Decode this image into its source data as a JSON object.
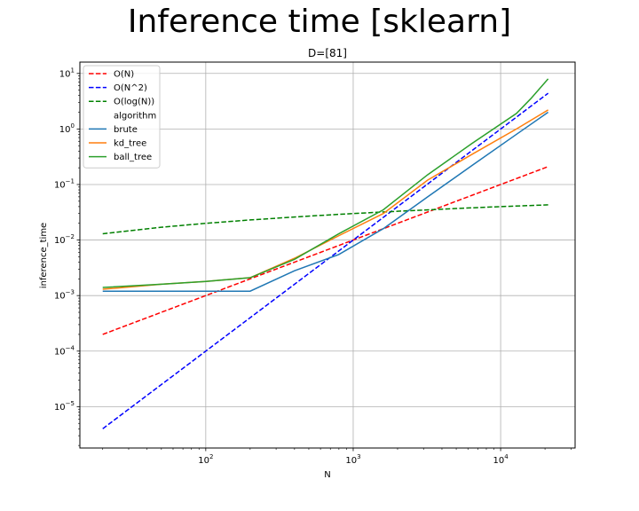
{
  "figure": {
    "suptitle": "Inference time [sklearn]"
  },
  "chart_data": {
    "type": "line",
    "title": "D=[81]",
    "xlabel": "N",
    "ylabel": "inference_time",
    "xscale": "log",
    "yscale": "log",
    "xlim": [
      14,
      32000
    ],
    "ylim": [
      1.8e-06,
      16
    ],
    "xticks": [
      {
        "value": 100,
        "base": "10",
        "exp": "2"
      },
      {
        "value": 1000,
        "base": "10",
        "exp": "3"
      },
      {
        "value": 10000,
        "base": "10",
        "exp": "4"
      }
    ],
    "yticks": [
      {
        "value": 1e-05,
        "base": "10",
        "exp": "−5"
      },
      {
        "value": 0.0001,
        "base": "10",
        "exp": "−4"
      },
      {
        "value": 0.001,
        "base": "10",
        "exp": "−3"
      },
      {
        "value": 0.01,
        "base": "10",
        "exp": "−2"
      },
      {
        "value": 0.1,
        "base": "10",
        "exp": "−1"
      },
      {
        "value": 1,
        "base": "10",
        "exp": "0"
      },
      {
        "value": 10,
        "base": "10",
        "exp": "1"
      }
    ],
    "grid": true,
    "legend_position": "upper left",
    "legend_title": "algorithm",
    "series": [
      {
        "name": "O(N)",
        "color": "#ff0000",
        "dash": true,
        "x": [
          20,
          21000
        ],
        "y": [
          0.0002,
          0.21
        ]
      },
      {
        "name": "O(N^2)",
        "color": "#0000ff",
        "dash": true,
        "x": [
          20,
          21000
        ],
        "y": [
          4e-06,
          4.4
        ]
      },
      {
        "name": "O(log(N))",
        "color": "#008000",
        "dash": true,
        "x": [
          20,
          50,
          100,
          200,
          500,
          1000,
          2000,
          5000,
          10000,
          21000
        ],
        "y": [
          0.013,
          0.017,
          0.02,
          0.023,
          0.027,
          0.03,
          0.033,
          0.037,
          0.04,
          0.043
        ]
      },
      {
        "name": "brute",
        "color": "#1f77b4",
        "dash": false,
        "section": "algorithm",
        "x": [
          20,
          50,
          100,
          200,
          400,
          800,
          1600,
          3200,
          6400,
          12800,
          21000
        ],
        "y": [
          0.0012,
          0.0012,
          0.0012,
          0.0012,
          0.0028,
          0.0055,
          0.016,
          0.06,
          0.22,
          0.8,
          2.0
        ]
      },
      {
        "name": "kd_tree",
        "color": "#ff7f0e",
        "dash": false,
        "section": "algorithm",
        "x": [
          20,
          50,
          100,
          200,
          400,
          800,
          1600,
          3200,
          6400,
          12800,
          21000
        ],
        "y": [
          0.0013,
          0.0016,
          0.0018,
          0.0021,
          0.0047,
          0.012,
          0.03,
          0.12,
          0.35,
          1.0,
          2.2
        ]
      },
      {
        "name": "ball_tree",
        "color": "#2ca02c",
        "dash": false,
        "section": "algorithm",
        "x": [
          20,
          50,
          100,
          200,
          400,
          800,
          1600,
          3200,
          6400,
          12800,
          16000,
          21000
        ],
        "y": [
          0.0014,
          0.0016,
          0.0018,
          0.0021,
          0.0045,
          0.013,
          0.035,
          0.15,
          0.55,
          1.9,
          3.5,
          8.0
        ]
      }
    ]
  }
}
